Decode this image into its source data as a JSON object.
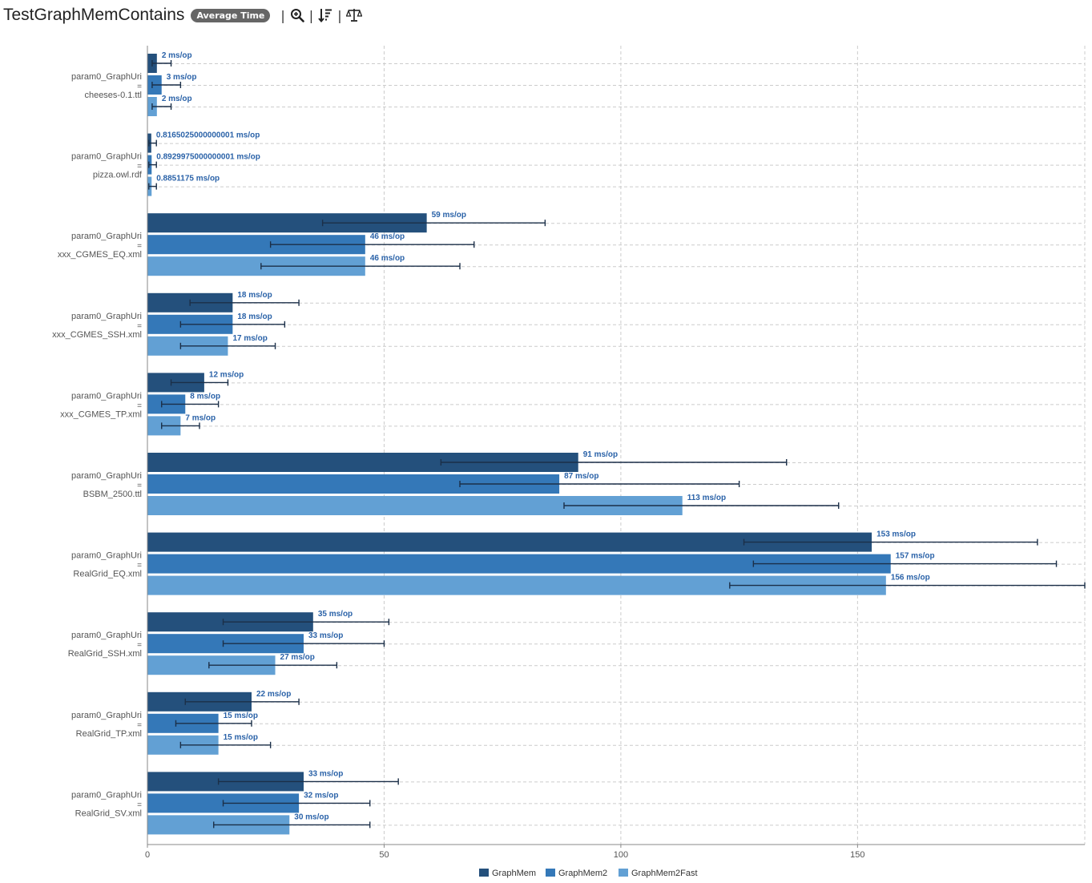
{
  "header": {
    "title": "TestGraphMemContains",
    "mode_badge": "Average Time",
    "separator": "|",
    "tools": [
      {
        "name": "zoom-icon"
      },
      {
        "name": "sort-icon"
      },
      {
        "name": "compare-icon"
      }
    ]
  },
  "colors": {
    "GraphMem": "#24507c",
    "GraphMem2": "#3478b8",
    "GraphMem2Fast": "#62a0d4",
    "label": "#2a62a8",
    "error_bar": "#1b2f48",
    "grid": "#cccccc",
    "axis_text": "#555555"
  },
  "chart_data": {
    "type": "bar",
    "orientation": "horizontal",
    "title": "TestGraphMemContains",
    "xlabel": "",
    "ylabel": "",
    "xlim": [
      0,
      198
    ],
    "xticks": [
      0,
      50,
      100,
      150
    ],
    "grid": true,
    "legend_position": "bottom",
    "unit_suffix": " ms/op",
    "param_label": "param0_GraphUri",
    "param_eq": "=",
    "categories": [
      "cheeses-0.1.ttl",
      "pizza.owl.rdf",
      "xxx_CGMES_EQ.xml",
      "xxx_CGMES_SSH.xml",
      "xxx_CGMES_TP.xml",
      "BSBM_2500.ttl",
      "RealGrid_EQ.xml",
      "RealGrid_SSH.xml",
      "RealGrid_TP.xml",
      "RealGrid_SV.xml"
    ],
    "series": [
      {
        "name": "GraphMem",
        "values": [
          2,
          0.8165025000000001,
          59,
          18,
          12,
          91,
          153,
          35,
          22,
          33
        ],
        "labels": [
          "2",
          "0.8165025000000001",
          "59",
          "18",
          "12",
          "91",
          "153",
          "35",
          "22",
          "33"
        ],
        "err_low": [
          1,
          0.3,
          37,
          9,
          5,
          62,
          126,
          16,
          8,
          15
        ],
        "err_high": [
          5,
          1.9,
          84,
          32,
          17,
          135,
          188,
          51,
          32,
          53
        ]
      },
      {
        "name": "GraphMem2",
        "values": [
          3,
          0.8929975000000001,
          46,
          18,
          8,
          87,
          157,
          33,
          15,
          32
        ],
        "labels": [
          "3",
          "0.8929975000000001",
          "46",
          "18",
          "8",
          "87",
          "157",
          "33",
          "15",
          "32"
        ],
        "err_low": [
          1,
          0.3,
          26,
          7,
          3,
          66,
          128,
          16,
          6,
          16
        ],
        "err_high": [
          7,
          1.9,
          69,
          29,
          15,
          125,
          192,
          50,
          22,
          47
        ]
      },
      {
        "name": "GraphMem2Fast",
        "values": [
          2,
          0.8851175,
          46,
          17,
          7,
          113,
          156,
          27,
          15,
          30
        ],
        "labels": [
          "2",
          "0.8851175",
          "46",
          "17",
          "7",
          "113",
          "156",
          "27",
          "15",
          "30"
        ],
        "err_low": [
          1,
          0.3,
          24,
          7,
          3,
          88,
          123,
          13,
          7,
          14
        ],
        "err_high": [
          5,
          1.9,
          66,
          27,
          11,
          146,
          198,
          40,
          26,
          47
        ]
      }
    ]
  }
}
